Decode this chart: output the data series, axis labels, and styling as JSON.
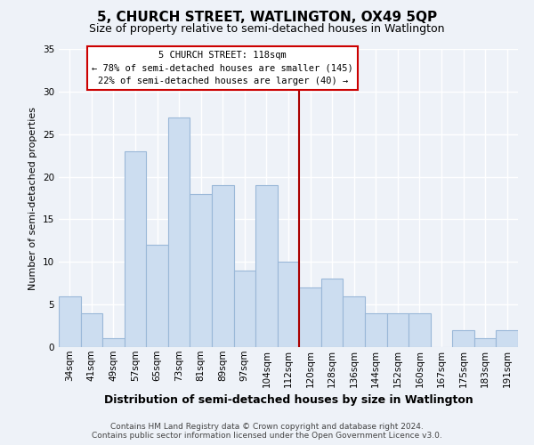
{
  "title": "5, CHURCH STREET, WATLINGTON, OX49 5QP",
  "subtitle": "Size of property relative to semi-detached houses in Watlington",
  "xlabel": "Distribution of semi-detached houses by size in Watlington",
  "ylabel": "Number of semi-detached properties",
  "categories": [
    "34sqm",
    "41sqm",
    "49sqm",
    "57sqm",
    "65sqm",
    "73sqm",
    "81sqm",
    "89sqm",
    "97sqm",
    "104sqm",
    "112sqm",
    "120sqm",
    "128sqm",
    "136sqm",
    "144sqm",
    "152sqm",
    "160sqm",
    "167sqm",
    "175sqm",
    "183sqm",
    "191sqm"
  ],
  "values": [
    6,
    4,
    1,
    23,
    12,
    27,
    18,
    19,
    9,
    19,
    10,
    7,
    8,
    6,
    4,
    4,
    4,
    0,
    2,
    1,
    2
  ],
  "bar_color": "#ccddf0",
  "bar_edge_color": "#9ab8d8",
  "highlight_line_color": "#aa0000",
  "annotation_title": "5 CHURCH STREET: 118sqm",
  "annotation_line1": "← 78% of semi-detached houses are smaller (145)",
  "annotation_line2": "22% of semi-detached houses are larger (40) →",
  "annotation_box_facecolor": "#ffffff",
  "annotation_box_edgecolor": "#cc0000",
  "ylim": [
    0,
    35
  ],
  "yticks": [
    0,
    5,
    10,
    15,
    20,
    25,
    30,
    35
  ],
  "footer_line1": "Contains HM Land Registry data © Crown copyright and database right 2024.",
  "footer_line2": "Contains public sector information licensed under the Open Government Licence v3.0.",
  "bg_color": "#eef2f8",
  "grid_color": "#ffffff",
  "title_fontsize": 11,
  "subtitle_fontsize": 9,
  "ylabel_fontsize": 8,
  "xlabel_fontsize": 9,
  "tick_fontsize": 7.5,
  "ann_fontsize": 7.5,
  "footer_fontsize": 6.5
}
